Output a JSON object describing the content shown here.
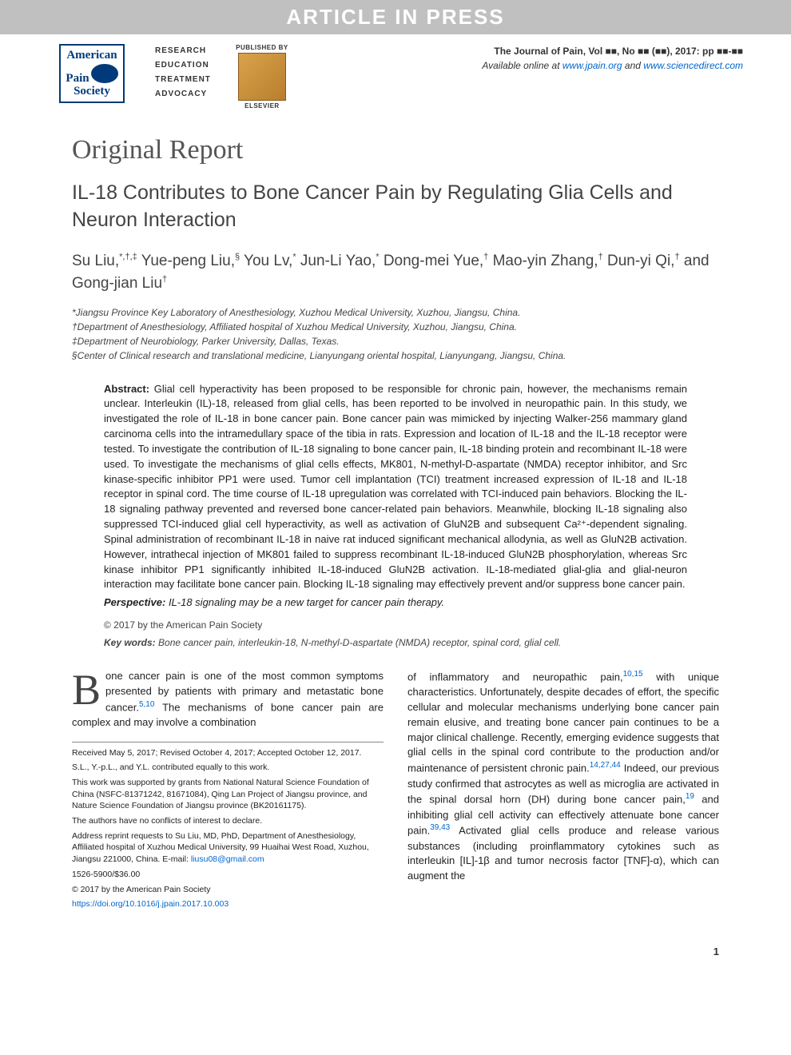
{
  "banner": "ARTICLE IN PRESS",
  "header": {
    "aps_lines": [
      "American",
      "Pain",
      "Society"
    ],
    "keyword_lines": [
      "RESEARCH",
      "EDUCATION",
      "TREATMENT",
      "ADVOCACY"
    ],
    "published_by": "PUBLISHED BY",
    "publisher_name": "ELSEVIER",
    "journal_line1": "The Journal of Pain, Vol ■■, No ■■ (■■), 2017: pp ■■-■■",
    "journal_line2_prefix": "Available online at ",
    "journal_link1": "www.jpain.org",
    "journal_line2_and": " and ",
    "journal_link2": "www.sciencedirect.com"
  },
  "article": {
    "section_type": "Original Report",
    "title": "IL-18 Contributes to Bone Cancer Pain by Regulating Glia Cells and Neuron Interaction",
    "authors_html": "Su Liu,*,†,‡ Yue-peng Liu,§ You Lv,* Jun-Li Yao,* Dong-mei Yue,† Mao-yin Zhang,† Dun-yi Qi,† and Gong-jian Liu†",
    "affiliations": [
      "*Jiangsu Province Key Laboratory of Anesthesiology, Xuzhou Medical University, Xuzhou, Jiangsu, China.",
      "†Department of Anesthesiology, Affiliated hospital of Xuzhou Medical University, Xuzhou, Jiangsu, China.",
      "‡Department of Neurobiology, Parker University, Dallas, Texas.",
      "§Center of Clinical research and translational medicine, Lianyungang oriental hospital, Lianyungang, Jiangsu, China."
    ]
  },
  "abstract": {
    "label": "Abstract:",
    "text": " Glial cell hyperactivity has been proposed to be responsible for chronic pain, however, the mechanisms remain unclear. Interleukin (IL)-18, released from glial cells, has been reported to be involved in neuropathic pain. In this study, we investigated the role of IL-18 in bone cancer pain. Bone cancer pain was mimicked by injecting Walker-256 mammary gland carcinoma cells into the intramedullary space of the tibia in rats. Expression and location of IL-18 and the IL-18 receptor were tested. To investigate the contribution of IL-18 signaling to bone cancer pain, IL-18 binding protein and recombinant IL-18 were used. To investigate the mechanisms of glial cells effects, MK801, N-methyl-D-aspartate (NMDA) receptor inhibitor, and Src kinase-specific inhibitor PP1 were used. Tumor cell implantation (TCI) treatment increased expression of IL-18 and IL-18 receptor in spinal cord. The time course of IL-18 upregulation was correlated with TCI-induced pain behaviors. Blocking the IL-18 signaling pathway prevented and reversed bone cancer-related pain behaviors. Meanwhile, blocking IL-18 signaling also suppressed TCI-induced glial cell hyperactivity, as well as activation of GluN2B and subsequent Ca²⁺-dependent signaling. Spinal administration of recombinant IL-18 in naive rat induced significant mechanical allodynia, as well as GluN2B activation. However, intrathecal injection of MK801 failed to suppress recombinant IL-18-induced GluN2B phosphorylation, whereas Src kinase inhibitor PP1 significantly inhibited IL-18-induced GluN2B activation. IL-18-mediated glial-glia and glial-neuron interaction may facilitate bone cancer pain. Blocking IL-18 signaling may effectively prevent and/or suppress bone cancer pain.",
    "perspective_label": "Perspective:",
    "perspective_text": " IL-18 signaling may be a new target for cancer pain therapy.",
    "copyright": "© 2017 by the American Pain Society",
    "keywords_label": "Key words:",
    "keywords_text": " Bone cancer pain, interleukin-18, N-methyl-D-aspartate (NMDA) receptor, spinal cord, glial cell."
  },
  "body": {
    "col1_dropcap": "B",
    "col1_text": "one cancer pain is one of the most common symptoms presented by patients with primary and metastatic bone cancer.",
    "col1_ref1": "5,10",
    "col1_text2": " The mechanisms of bone cancer pain are complex and may involve a combination",
    "col2_text1": "of inflammatory and neuropathic pain,",
    "col2_ref1": "10,15",
    "col2_text2": " with unique characteristics. Unfortunately, despite decades of effort, the specific cellular and molecular mechanisms underlying bone cancer pain remain elusive, and treating bone cancer pain continues to be a major clinical challenge. Recently, emerging evidence suggests that glial cells in the spinal cord contribute to the production and/or maintenance of persistent chronic pain.",
    "col2_ref2": "14,27,44",
    "col2_text3": " Indeed, our previous study confirmed that astrocytes as well as microglia are activated in the spinal dorsal horn (DH) during bone cancer pain,",
    "col2_ref3": "19",
    "col2_text4": " and inhibiting glial cell activity can effectively attenuate bone cancer pain.",
    "col2_ref4": "39,43",
    "col2_text5": " Activated glial cells produce and release various substances (including proinflammatory cytokines such as interleukin [IL]-1β and tumor necrosis factor [TNF]-α), which can augment the"
  },
  "footnotes": {
    "received": "Received May 5, 2017; Revised October 4, 2017; Accepted October 12, 2017.",
    "contributed": "S.L., Y.-p.L., and Y.L. contributed equally to this work.",
    "funding": "This work was supported by grants from National Natural Science Foundation of China (NSFC-81371242, 81671084), Qing Lan Project of Jiangsu province, and Nature Science Foundation of Jiangsu province (BK20161175).",
    "conflicts": "The authors have no conflicts of interest to declare.",
    "reprint": "Address reprint requests to Su Liu, MD, PhD, Department of Anesthesiology, Affiliated hospital of Xuzhou Medical University, 99 Huaihai West Road, Xuzhou, Jiangsu 221000, China. E-mail: ",
    "reprint_email": "liusu08@gmail.com",
    "issn": "1526-5900/$36.00",
    "copyright": "© 2017 by the American Pain Society",
    "doi": "https://doi.org/10.1016/j.jpain.2017.10.003"
  },
  "page_number": "1",
  "colors": {
    "banner_bg": "#c0c0c0",
    "banner_fg": "#ffffff",
    "aps_blue": "#003a7a",
    "link": "#0066cc",
    "heading": "#555555",
    "text": "#222222"
  }
}
